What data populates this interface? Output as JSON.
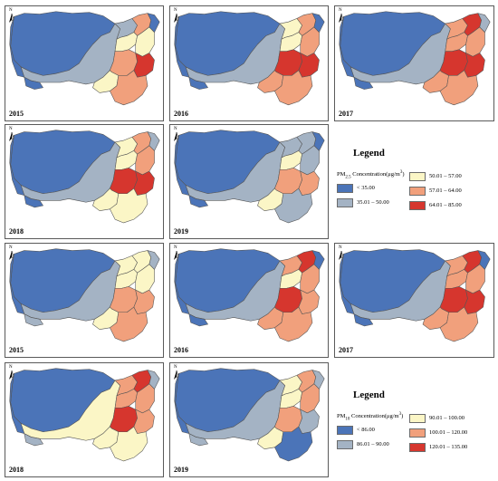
{
  "colors": {
    "c1": "#4b74b8",
    "c2": "#a4b3c4",
    "c3": "#fbf6c6",
    "c4": "#f1a07c",
    "c5": "#d6362e",
    "border": "#555555"
  },
  "north_label": "N",
  "pm25": {
    "legend_title": "Legend",
    "concentration_prefix": "PM",
    "concentration_sub": "2.5",
    "concentration_label": " Concentration(μg/m",
    "concentration_sup": "3",
    "concentration_close": ")",
    "classes": [
      {
        "label": "< 35.00",
        "color": "#4b74b8"
      },
      {
        "label": "35.01 – 50.00",
        "color": "#a4b3c4"
      },
      {
        "label": "50.01 – 57.00",
        "color": "#fbf6c6"
      },
      {
        "label": "57.01 – 64.00",
        "color": "#f1a07c"
      },
      {
        "label": "64.01 – 85.00",
        "color": "#d6362e"
      }
    ],
    "maps": [
      {
        "year": "2015",
        "regions": [
          1,
          2,
          2,
          4,
          3,
          3,
          4,
          5,
          3,
          4,
          1,
          1,
          1
        ]
      },
      {
        "year": "2016",
        "regions": [
          1,
          2,
          3,
          4,
          3,
          4,
          5,
          5,
          4,
          4,
          1,
          1,
          1
        ]
      },
      {
        "year": "2017",
        "regions": [
          1,
          2,
          4,
          5,
          4,
          4,
          5,
          5,
          4,
          4,
          1,
          1,
          2
        ]
      },
      {
        "year": "2018",
        "regions": [
          1,
          2,
          3,
          4,
          3,
          4,
          5,
          5,
          3,
          3,
          1,
          1,
          2
        ]
      },
      {
        "year": "2019",
        "regions": [
          1,
          2,
          2,
          2,
          3,
          2,
          4,
          4,
          3,
          2,
          1,
          1,
          1
        ]
      }
    ]
  },
  "pm10": {
    "legend_title": "Legend",
    "concentration_prefix": "PM",
    "concentration_sub": "10",
    "concentration_label": " Concentration(μg/m",
    "concentration_sup": "3",
    "concentration_close": ")",
    "classes": [
      {
        "label": "< 86.00",
        "color": "#4b74b8"
      },
      {
        "label": "86.01 – 90.00",
        "color": "#a4b3c4"
      },
      {
        "label": "90.01 – 100.00",
        "color": "#fbf6c6"
      },
      {
        "label": "100.01 – 120.00",
        "color": "#f1a07c"
      },
      {
        "label": "120.01 – 135.00",
        "color": "#d6362e"
      }
    ],
    "maps": [
      {
        "year": "2015",
        "regions": [
          1,
          2,
          3,
          3,
          3,
          3,
          4,
          4,
          3,
          4,
          1,
          2,
          2
        ]
      },
      {
        "year": "2016",
        "regions": [
          1,
          2,
          4,
          5,
          3,
          4,
          5,
          4,
          4,
          4,
          1,
          1,
          1
        ]
      },
      {
        "year": "2017",
        "regions": [
          1,
          2,
          4,
          5,
          4,
          4,
          5,
          5,
          4,
          4,
          1,
          1,
          1
        ]
      },
      {
        "year": "2018",
        "regions": [
          1,
          3,
          4,
          5,
          4,
          4,
          5,
          4,
          3,
          3,
          1,
          2,
          2
        ]
      },
      {
        "year": "2019",
        "regions": [
          1,
          2,
          3,
          4,
          3,
          4,
          4,
          2,
          3,
          1,
          1,
          2,
          2
        ]
      }
    ]
  }
}
